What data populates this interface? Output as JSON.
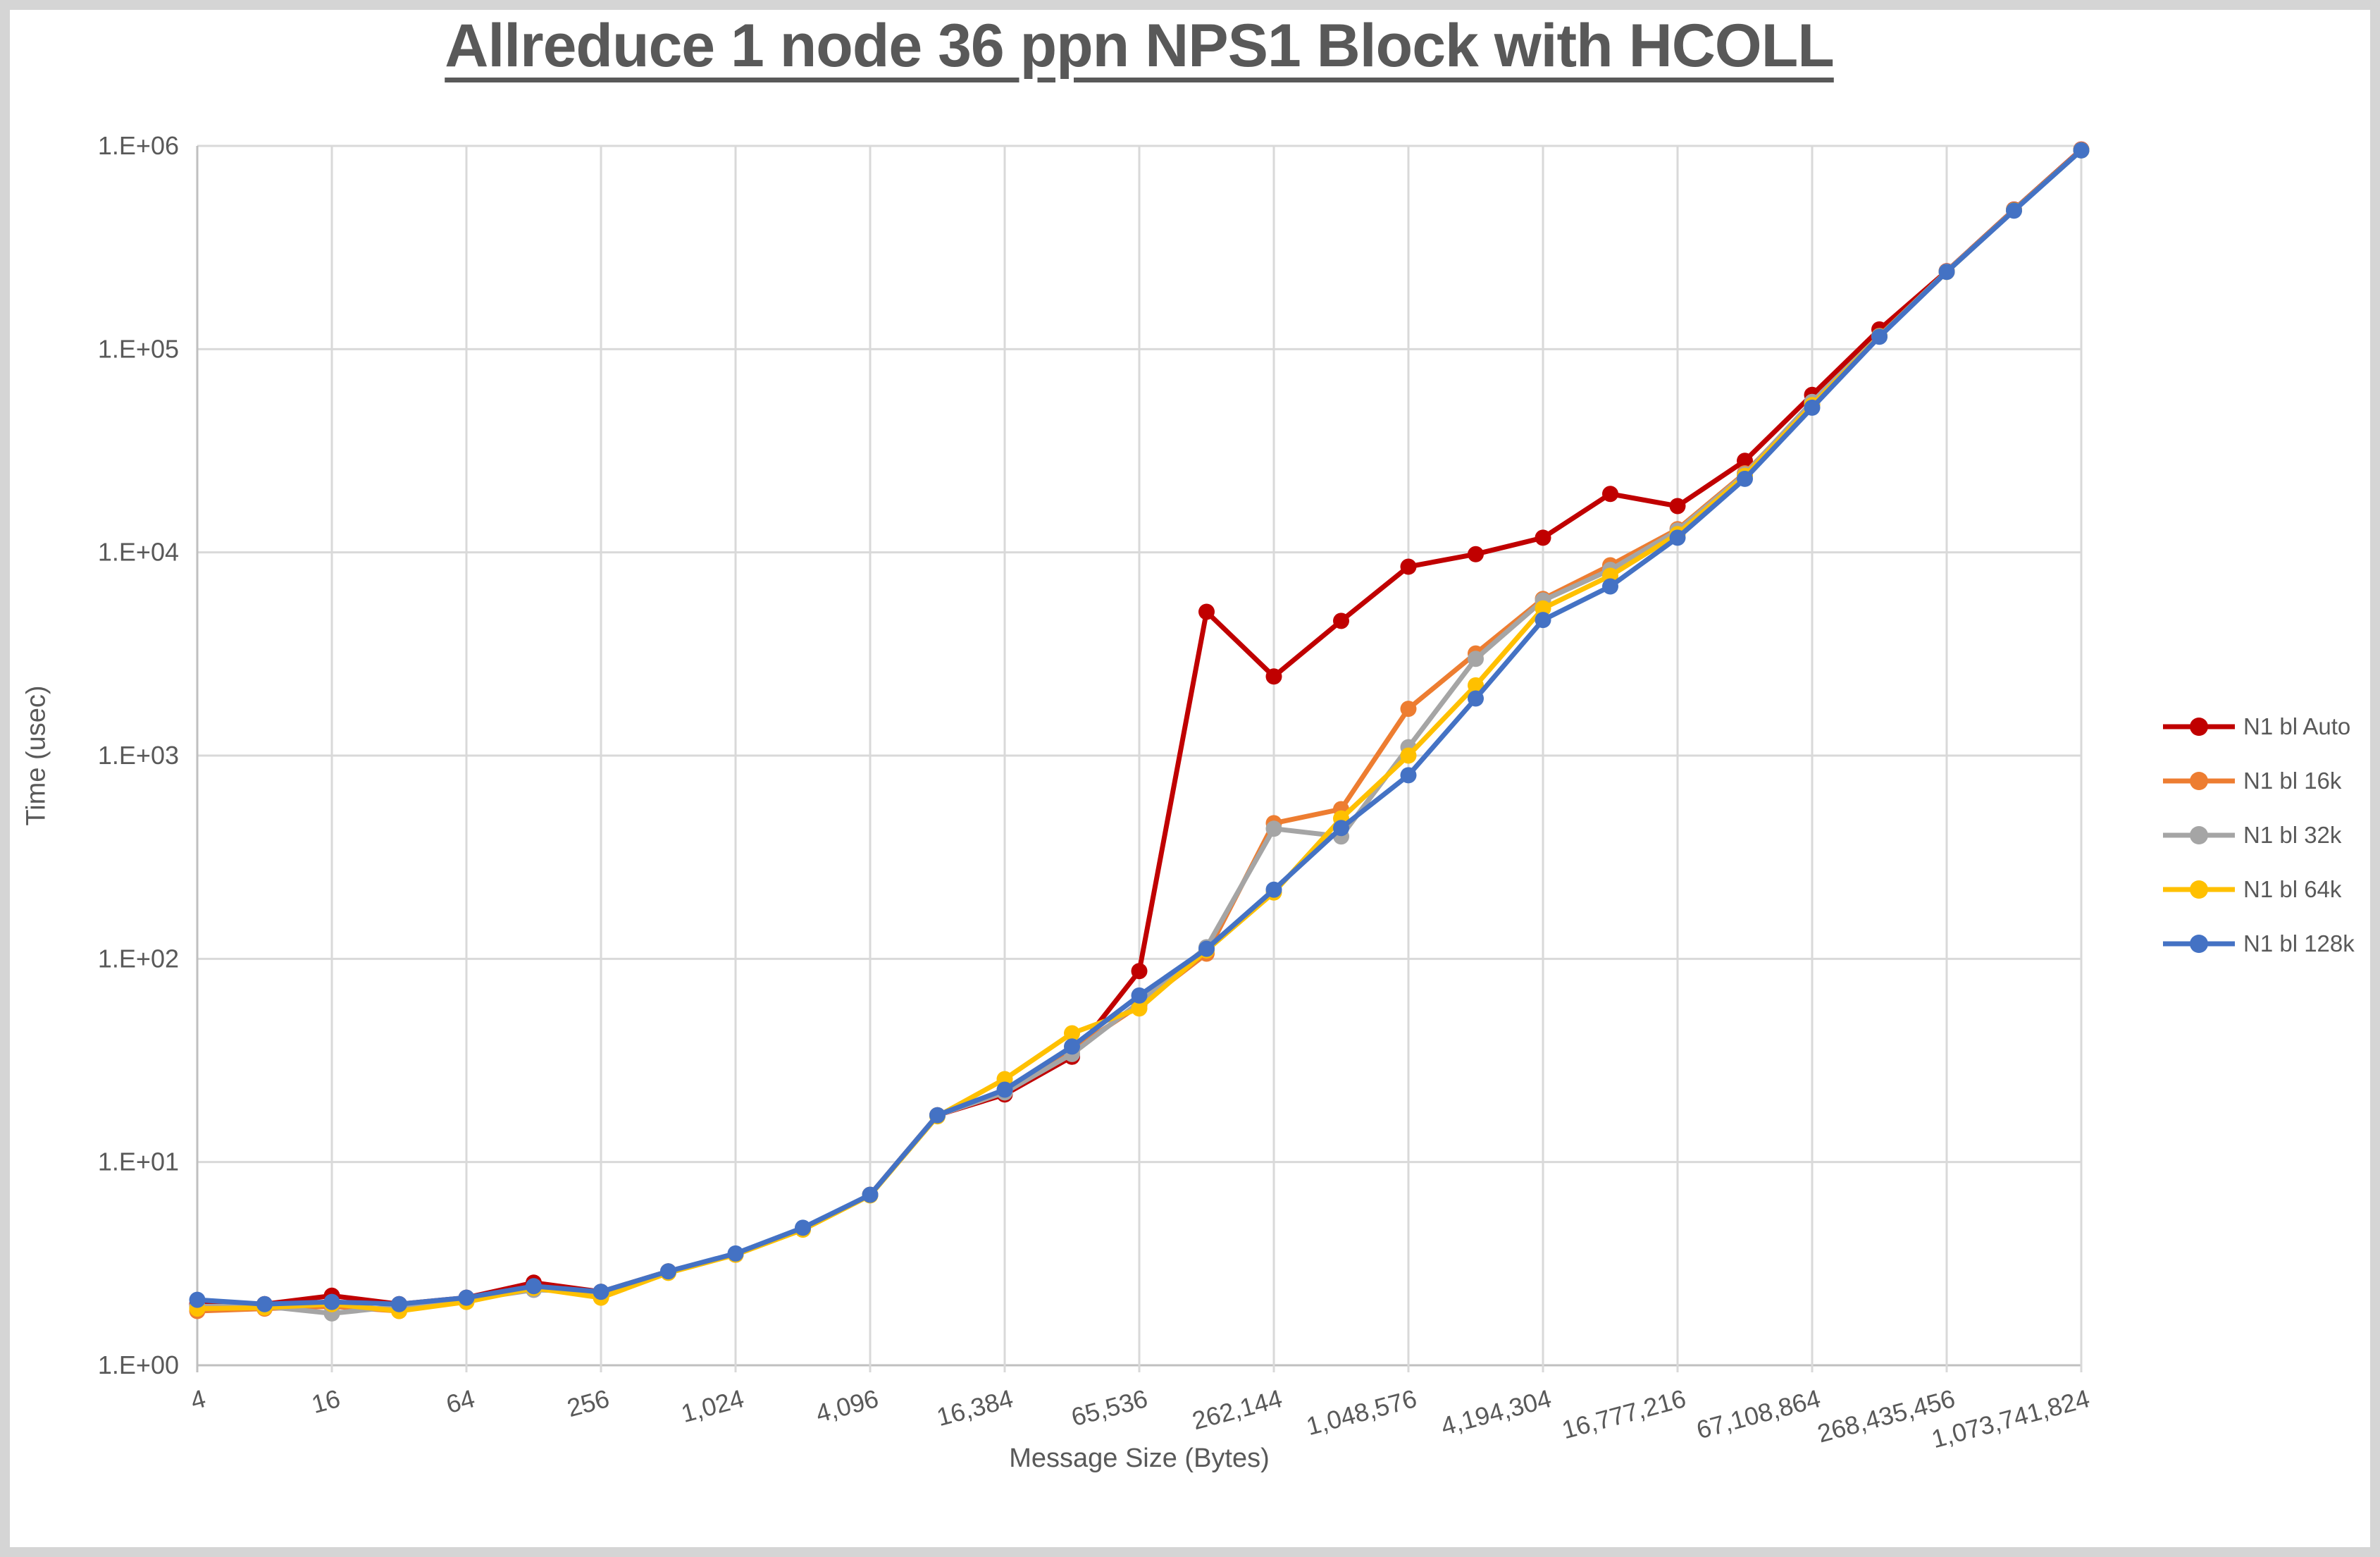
{
  "title": "Allreduce 1 node 36 ppn NPS1 Block with HCOLL",
  "colors": {
    "auto": "#C00000",
    "k16": "#ED7D31",
    "k32": "#A5A5A5",
    "k64": "#FFC000",
    "k128": "#4472C4",
    "gridline": "#D9D9D9",
    "axis_line": "#BFBFBF",
    "text": "#595959"
  },
  "chart_data": {
    "type": "line",
    "title": "Allreduce 1 node 36 ppn NPS1 Block with HCOLL",
    "xlabel": "Message Size (Bytes)",
    "ylabel": "Time (usec)",
    "x_scale": "log2",
    "y_scale": "log10",
    "ylim": [
      1,
      1000000
    ],
    "y_tick_labels": [
      "1.E+00",
      "1.E+01",
      "1.E+02",
      "1.E+03",
      "1.E+04",
      "1.E+05",
      "1.E+06"
    ],
    "x_tick_labels": [
      "4",
      "16",
      "64",
      "256",
      "1,024",
      "4,096",
      "16,384",
      "65,536",
      "262,144",
      "1,048,576",
      "4,194,304",
      "16,777,216",
      "67,108,864",
      "268,435,456",
      "1,073,741,824"
    ],
    "grid": true,
    "legend_position": "right",
    "x": [
      4,
      8,
      16,
      32,
      64,
      128,
      256,
      512,
      1024,
      2048,
      4096,
      8192,
      16384,
      32768,
      65536,
      131072,
      262144,
      524288,
      1048576,
      2097152,
      4194304,
      8388608,
      16777216,
      33554432,
      67108864,
      134217728,
      268435456,
      536870912,
      1073741824
    ],
    "series": [
      {
        "name": "N1 bl Auto",
        "color": "#C00000",
        "values": [
          2.0,
          2.0,
          2.2,
          2.0,
          2.15,
          2.55,
          2.3,
          2.9,
          3.5,
          4.7,
          6.9,
          17,
          21.5,
          33,
          87,
          5100,
          2450,
          4600,
          8500,
          9800,
          11800,
          19400,
          16900,
          28200,
          59500,
          125000,
          242000,
          486000,
          960000
        ]
      },
      {
        "name": "N1 bl 16k",
        "color": "#ED7D31",
        "values": [
          1.85,
          1.9,
          1.95,
          1.85,
          2.1,
          2.4,
          2.28,
          2.9,
          3.5,
          4.7,
          6.9,
          17,
          22,
          35.5,
          59,
          106,
          465,
          545,
          1700,
          3180,
          5900,
          8640,
          13000,
          24500,
          54000,
          116000,
          241000,
          483000,
          955000
        ]
      },
      {
        "name": "N1 bl 32k",
        "color": "#A5A5A5",
        "values": [
          1.95,
          1.95,
          1.8,
          1.95,
          2.1,
          2.35,
          2.3,
          2.9,
          3.5,
          4.7,
          6.9,
          17,
          22,
          34,
          61,
          114,
          437,
          400,
          1100,
          2990,
          5800,
          8200,
          12800,
          24200,
          55000,
          116000,
          241000,
          483000,
          955000
        ]
      },
      {
        "name": "N1 bl 64k",
        "color": "#FFC000",
        "values": [
          1.9,
          1.92,
          2.0,
          1.85,
          2.05,
          2.4,
          2.15,
          2.85,
          3.5,
          4.65,
          6.85,
          16.8,
          25.6,
          43,
          57,
          110,
          212,
          490,
          1000,
          2215,
          5300,
          7670,
          12300,
          23800,
          53000,
          115500,
          240000,
          482000,
          952000
        ]
      },
      {
        "name": "N1 bl 128k",
        "color": "#4472C4",
        "values": [
          2.1,
          2.0,
          2.05,
          2.0,
          2.15,
          2.45,
          2.3,
          2.9,
          3.55,
          4.75,
          6.9,
          17,
          22.7,
          37,
          66,
          112,
          219,
          440,
          800,
          1910,
          4650,
          6800,
          11800,
          23000,
          51500,
          115000,
          240000,
          480000,
          950000
        ]
      }
    ]
  }
}
